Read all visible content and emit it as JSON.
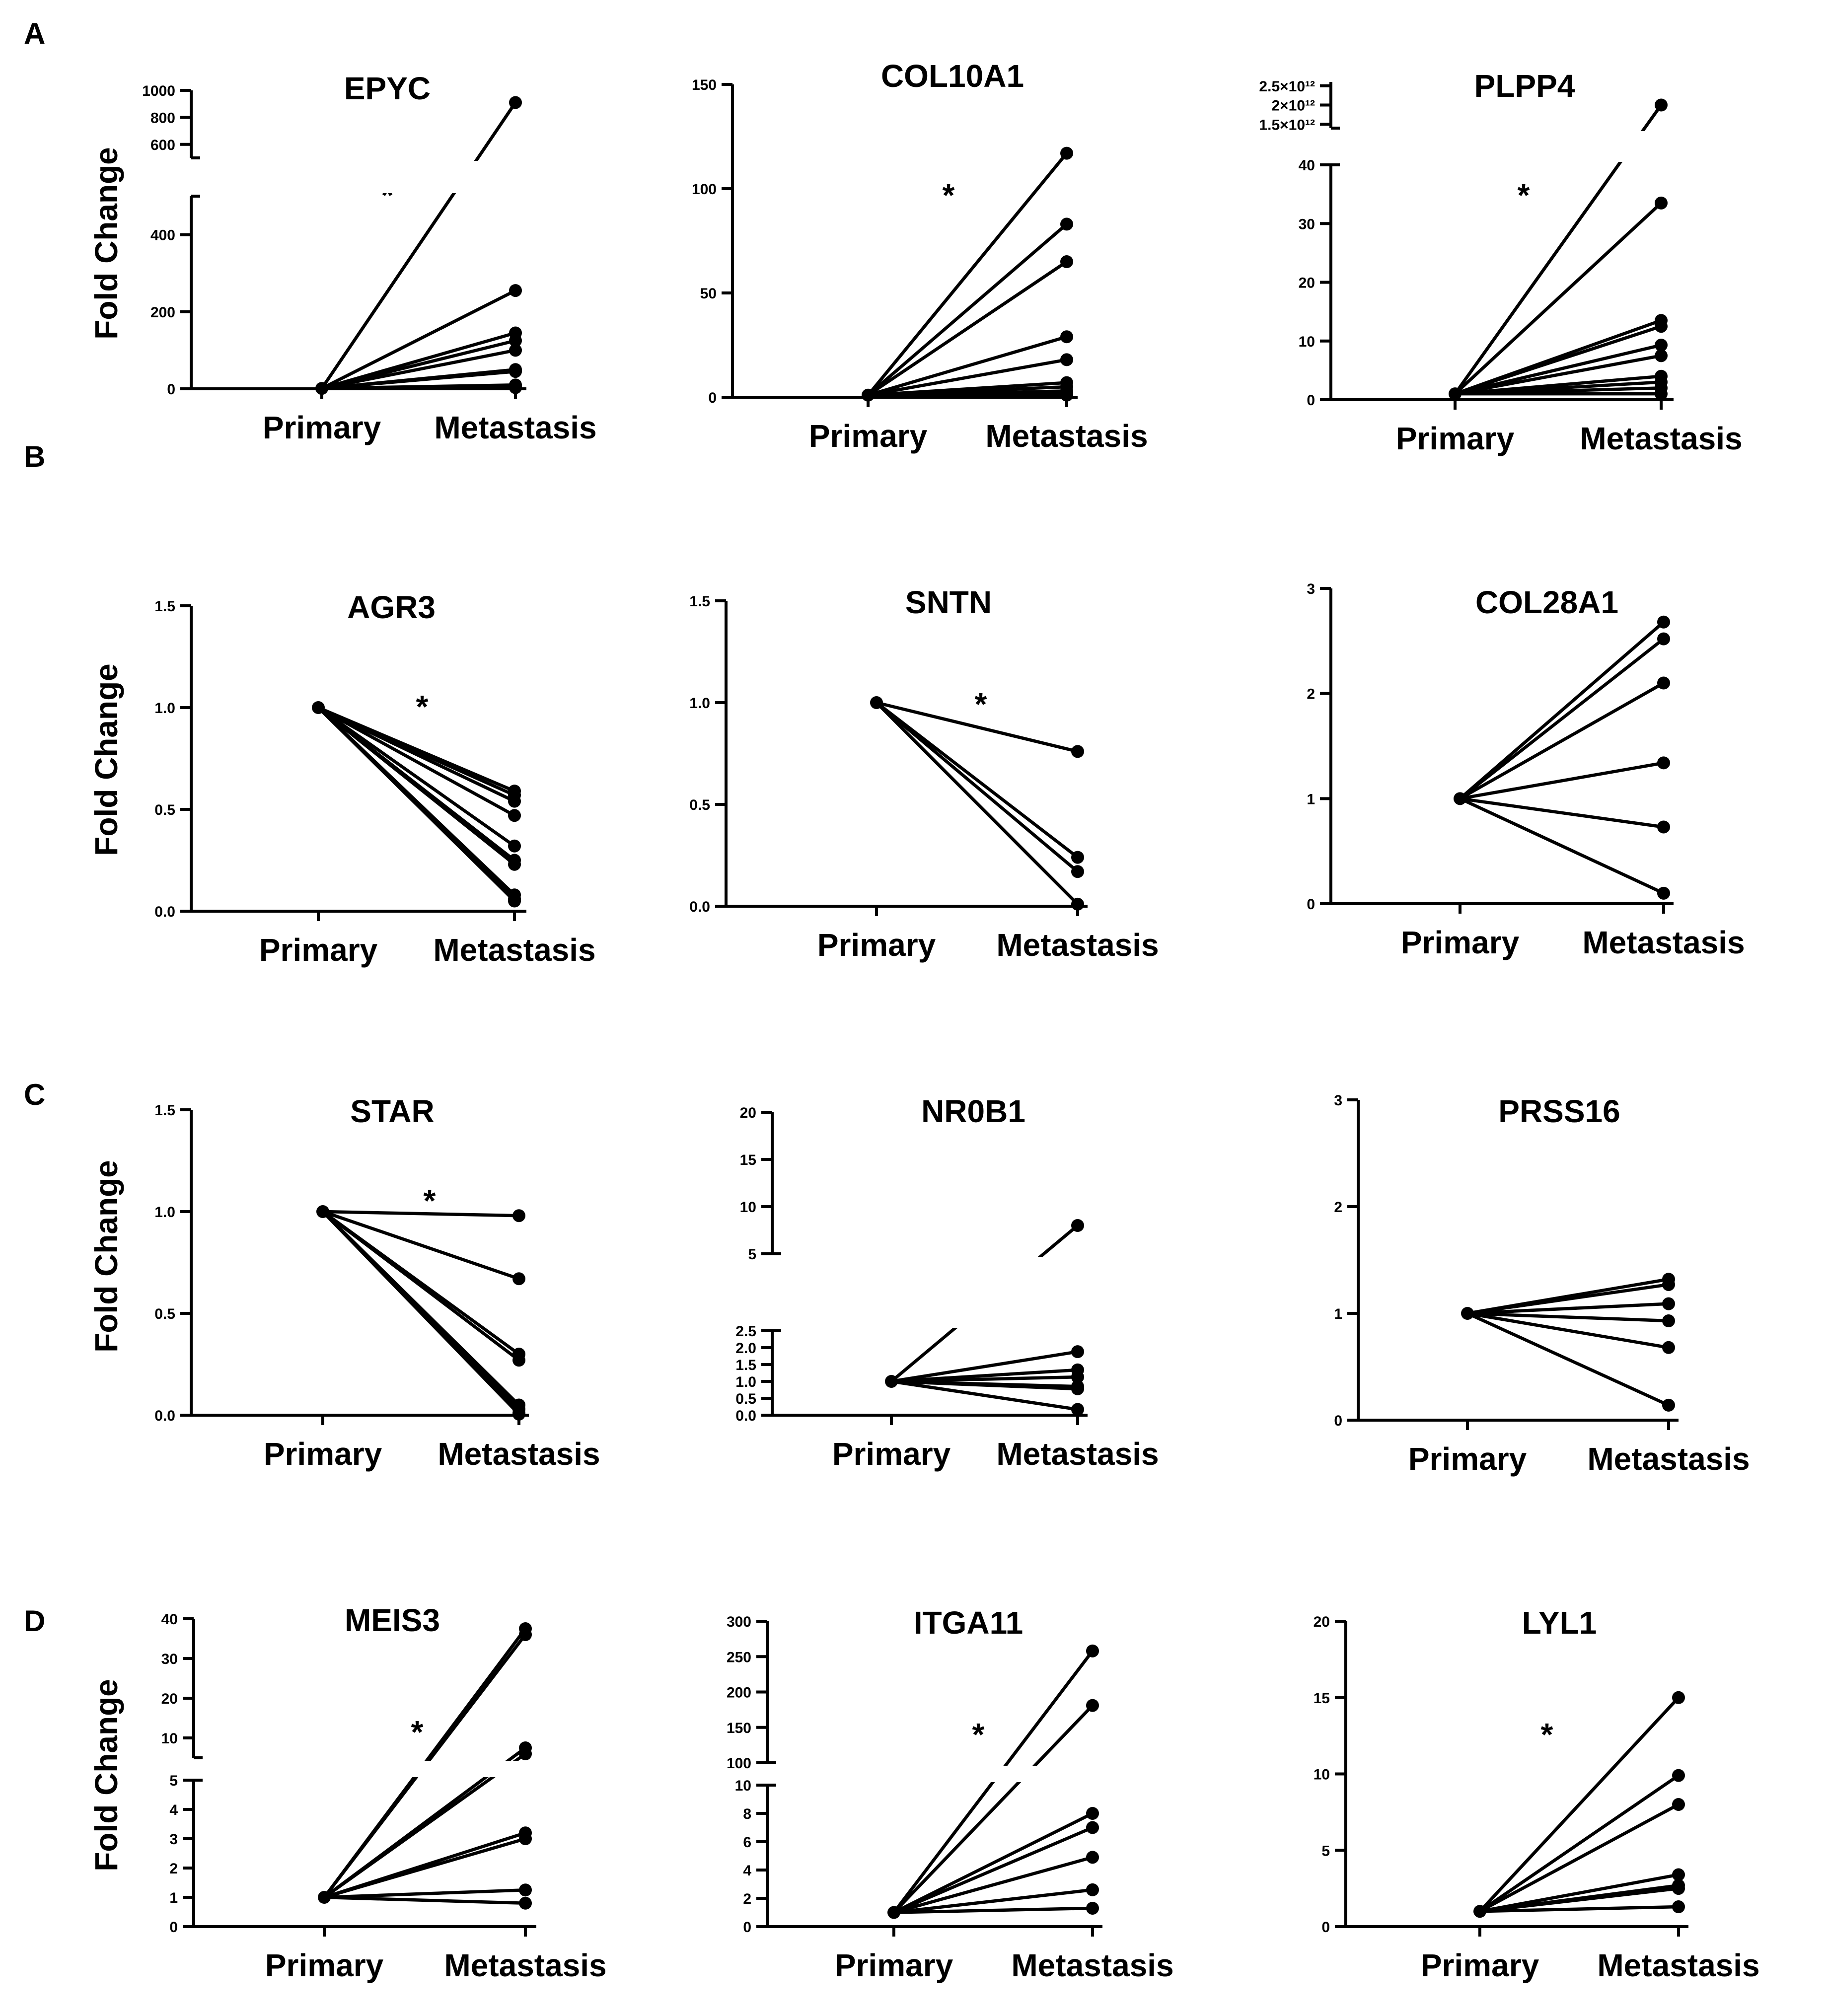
{
  "panel_labels": [
    "A",
    "B",
    "C",
    "D"
  ],
  "y_axis_label": "Fold Change",
  "chart_data": [
    {
      "id": "epyc",
      "title": "EPYC",
      "type": "line",
      "categories": [
        "Primary",
        "Metastasis"
      ],
      "ylabel": "Fold Change",
      "significant": true,
      "significance_label": "*",
      "axis": {
        "broken": true,
        "segments": [
          {
            "range": [
              0,
              500
            ],
            "ticks": [
              {
                "v": 0,
                "label": "0"
              },
              {
                "v": 200,
                "label": "200"
              },
              {
                "v": 400,
                "label": "400"
              }
            ]
          },
          {
            "range": [
              500,
              1000
            ],
            "ticks": [
              {
                "v": 600,
                "label": "600"
              },
              {
                "v": 800,
                "label": "800"
              },
              {
                "v": 1000,
                "label": "1000"
              }
            ]
          }
        ]
      },
      "primary_value": 1,
      "metastasis_values": [
        910,
        255,
        145,
        125,
        100,
        50,
        45,
        10,
        5,
        3
      ]
    },
    {
      "id": "col10a1",
      "title": "COL10A1",
      "type": "line",
      "categories": [
        "Primary",
        "Metastasis"
      ],
      "ylabel": "",
      "significant": true,
      "significance_label": "*",
      "axis": {
        "broken": false,
        "segments": [
          {
            "range": [
              0,
              150
            ],
            "ticks": [
              {
                "v": 0,
                "label": "0"
              },
              {
                "v": 50,
                "label": "50"
              },
              {
                "v": 100,
                "label": "100"
              },
              {
                "v": 150,
                "label": "150"
              }
            ]
          }
        ]
      },
      "primary_value": 1,
      "metastasis_values": [
        117,
        83,
        65,
        29,
        18,
        7,
        5,
        3,
        2,
        1
      ]
    },
    {
      "id": "plpp4",
      "title": "PLPP4",
      "type": "line",
      "categories": [
        "Primary",
        "Metastasis"
      ],
      "ylabel": "",
      "significant": true,
      "significance_label": "*",
      "axis": {
        "broken": true,
        "segments": [
          {
            "range": [
              0,
              40
            ],
            "ticks": [
              {
                "v": 0,
                "label": "0"
              },
              {
                "v": 10,
                "label": "10"
              },
              {
                "v": 20,
                "label": "20"
              },
              {
                "v": 30,
                "label": "30"
              },
              {
                "v": 40,
                "label": "40"
              }
            ]
          },
          {
            "range": [
              1400000000000,
              2600000000000
            ],
            "ticks": [
              {
                "v": 1500000000000,
                "label": "1.5×10¹²"
              },
              {
                "v": 2000000000000,
                "label": "2×10¹²"
              },
              {
                "v": 2500000000000,
                "label": "2.5×10¹²"
              }
            ]
          }
        ]
      },
      "primary_value": 1,
      "metastasis_values": [
        2000000000000,
        33.5,
        13.5,
        12.5,
        9.3,
        7.5,
        4,
        3,
        2,
        1
      ]
    },
    {
      "id": "agr3",
      "title": "AGR3",
      "type": "line",
      "categories": [
        "Primary",
        "Metastasis"
      ],
      "ylabel": "Fold Change",
      "significant": true,
      "significance_label": "*",
      "axis": {
        "broken": false,
        "segments": [
          {
            "range": [
              0,
              1.5
            ],
            "ticks": [
              {
                "v": 0,
                "label": "0.0"
              },
              {
                "v": 0.5,
                "label": "0.5"
              },
              {
                "v": 1.0,
                "label": "1.0"
              },
              {
                "v": 1.5,
                "label": "1.5"
              }
            ]
          }
        ]
      },
      "primary_value": 1,
      "metastasis_values": [
        0.59,
        0.57,
        0.54,
        0.47,
        0.32,
        0.25,
        0.23,
        0.08,
        0.06,
        0.05
      ]
    },
    {
      "id": "sntn",
      "title": "SNTN",
      "type": "line",
      "categories": [
        "Primary",
        "Metastasis"
      ],
      "ylabel": "",
      "significant": true,
      "significance_label": "*",
      "axis": {
        "broken": false,
        "segments": [
          {
            "range": [
              0,
              1.5
            ],
            "ticks": [
              {
                "v": 0,
                "label": "0.0"
              },
              {
                "v": 0.5,
                "label": "0.5"
              },
              {
                "v": 1.0,
                "label": "1.0"
              },
              {
                "v": 1.5,
                "label": "1.5"
              }
            ]
          }
        ]
      },
      "primary_value": 1,
      "metastasis_values": [
        0.76,
        0.24,
        0.17,
        0.01
      ]
    },
    {
      "id": "col28a1",
      "title": "COL28A1",
      "type": "line",
      "categories": [
        "Primary",
        "Metastasis"
      ],
      "ylabel": "",
      "significant": false,
      "significance_label": "",
      "axis": {
        "broken": false,
        "segments": [
          {
            "range": [
              0,
              3
            ],
            "ticks": [
              {
                "v": 0,
                "label": "0"
              },
              {
                "v": 1,
                "label": "1"
              },
              {
                "v": 2,
                "label": "2"
              },
              {
                "v": 3,
                "label": "3"
              }
            ]
          }
        ]
      },
      "primary_value": 1,
      "metastasis_values": [
        2.68,
        2.52,
        2.1,
        1.34,
        0.73,
        0.1
      ]
    },
    {
      "id": "star",
      "title": "STAR",
      "type": "line",
      "categories": [
        "Primary",
        "Metastasis"
      ],
      "ylabel": "Fold Change",
      "significant": true,
      "significance_label": "*",
      "axis": {
        "broken": false,
        "segments": [
          {
            "range": [
              0,
              1.5
            ],
            "ticks": [
              {
                "v": 0,
                "label": "0.0"
              },
              {
                "v": 0.5,
                "label": "0.5"
              },
              {
                "v": 1.0,
                "label": "1.0"
              },
              {
                "v": 1.5,
                "label": "1.5"
              }
            ]
          }
        ]
      },
      "primary_value": 1,
      "metastasis_values": [
        0.98,
        0.67,
        0.3,
        0.27,
        0.05,
        0.03,
        0.01,
        0.005
      ]
    },
    {
      "id": "nr0b1",
      "title": "NR0B1",
      "type": "line",
      "categories": [
        "Primary",
        "Metastasis"
      ],
      "ylabel": "",
      "significant": false,
      "significance_label": "",
      "axis": {
        "broken": true,
        "segments": [
          {
            "range": [
              0,
              2.5
            ],
            "ticks": [
              {
                "v": 0,
                "label": "0.0"
              },
              {
                "v": 0.5,
                "label": "0.5"
              },
              {
                "v": 1.0,
                "label": "1.0"
              },
              {
                "v": 1.5,
                "label": "1.5"
              },
              {
                "v": 2.0,
                "label": "2.0"
              },
              {
                "v": 2.5,
                "label": "2.5"
              }
            ]
          },
          {
            "range": [
              5,
              20
            ],
            "ticks": [
              {
                "v": 5,
                "label": "5"
              },
              {
                "v": 10,
                "label": "10"
              },
              {
                "v": 15,
                "label": "15"
              },
              {
                "v": 20,
                "label": "20"
              }
            ]
          }
        ]
      },
      "primary_value": 1,
      "metastasis_values": [
        8,
        1.88,
        1.34,
        1.13,
        0.85,
        0.78,
        0.17
      ]
    },
    {
      "id": "prss16",
      "title": "PRSS16",
      "type": "line",
      "categories": [
        "Primary",
        "Metastasis"
      ],
      "ylabel": "",
      "significant": false,
      "significance_label": "",
      "axis": {
        "broken": false,
        "segments": [
          {
            "range": [
              0,
              3
            ],
            "ticks": [
              {
                "v": 0,
                "label": "0"
              },
              {
                "v": 1,
                "label": "1"
              },
              {
                "v": 2,
                "label": "2"
              },
              {
                "v": 3,
                "label": "3"
              }
            ]
          }
        ]
      },
      "primary_value": 1,
      "metastasis_values": [
        1.32,
        1.27,
        1.09,
        0.93,
        0.68,
        0.14
      ]
    },
    {
      "id": "meis3",
      "title": "MEIS3",
      "type": "line",
      "categories": [
        "Primary",
        "Metastasis"
      ],
      "ylabel": "Fold Change",
      "significant": true,
      "significance_label": "*",
      "axis": {
        "broken": true,
        "segments": [
          {
            "range": [
              0,
              5
            ],
            "ticks": [
              {
                "v": 0,
                "label": "0"
              },
              {
                "v": 1,
                "label": "1"
              },
              {
                "v": 2,
                "label": "2"
              },
              {
                "v": 3,
                "label": "3"
              },
              {
                "v": 4,
                "label": "4"
              },
              {
                "v": 5,
                "label": "5"
              }
            ]
          },
          {
            "range": [
              5,
              40
            ],
            "ticks": [
              {
                "v": 10,
                "label": "10"
              },
              {
                "v": 20,
                "label": "20"
              },
              {
                "v": 30,
                "label": "30"
              },
              {
                "v": 40,
                "label": "40"
              }
            ]
          }
        ]
      },
      "primary_value": 1,
      "metastasis_values": [
        37.5,
        36,
        7.5,
        6,
        3.2,
        3,
        1.25,
        0.8
      ]
    },
    {
      "id": "itga11",
      "title": "ITGA11",
      "type": "line",
      "categories": [
        "Primary",
        "Metastasis"
      ],
      "ylabel": "",
      "significant": true,
      "significance_label": "*",
      "axis": {
        "broken": true,
        "segments": [
          {
            "range": [
              0,
              10
            ],
            "ticks": [
              {
                "v": 0,
                "label": "0"
              },
              {
                "v": 2,
                "label": "2"
              },
              {
                "v": 4,
                "label": "4"
              },
              {
                "v": 6,
                "label": "6"
              },
              {
                "v": 8,
                "label": "8"
              },
              {
                "v": 10,
                "label": "10"
              }
            ]
          },
          {
            "range": [
              100,
              300
            ],
            "ticks": [
              {
                "v": 100,
                "label": "100"
              },
              {
                "v": 150,
                "label": "150"
              },
              {
                "v": 200,
                "label": "200"
              },
              {
                "v": 250,
                "label": "250"
              },
              {
                "v": 300,
                "label": "300"
              }
            ]
          }
        ]
      },
      "primary_value": 1,
      "metastasis_values": [
        258,
        181,
        8,
        7,
        4.9,
        2.6,
        1.3
      ]
    },
    {
      "id": "lyl1",
      "title": "LYL1",
      "type": "line",
      "categories": [
        "Primary",
        "Metastasis"
      ],
      "ylabel": "",
      "significant": true,
      "significance_label": "*",
      "axis": {
        "broken": false,
        "segments": [
          {
            "range": [
              0,
              20
            ],
            "ticks": [
              {
                "v": 0,
                "label": "0"
              },
              {
                "v": 5,
                "label": "5"
              },
              {
                "v": 10,
                "label": "10"
              },
              {
                "v": 15,
                "label": "15"
              },
              {
                "v": 20,
                "label": "20"
              }
            ]
          }
        ]
      },
      "primary_value": 1,
      "metastasis_values": [
        15,
        9.9,
        8,
        3.4,
        2.7,
        2.5,
        1.3
      ]
    }
  ]
}
